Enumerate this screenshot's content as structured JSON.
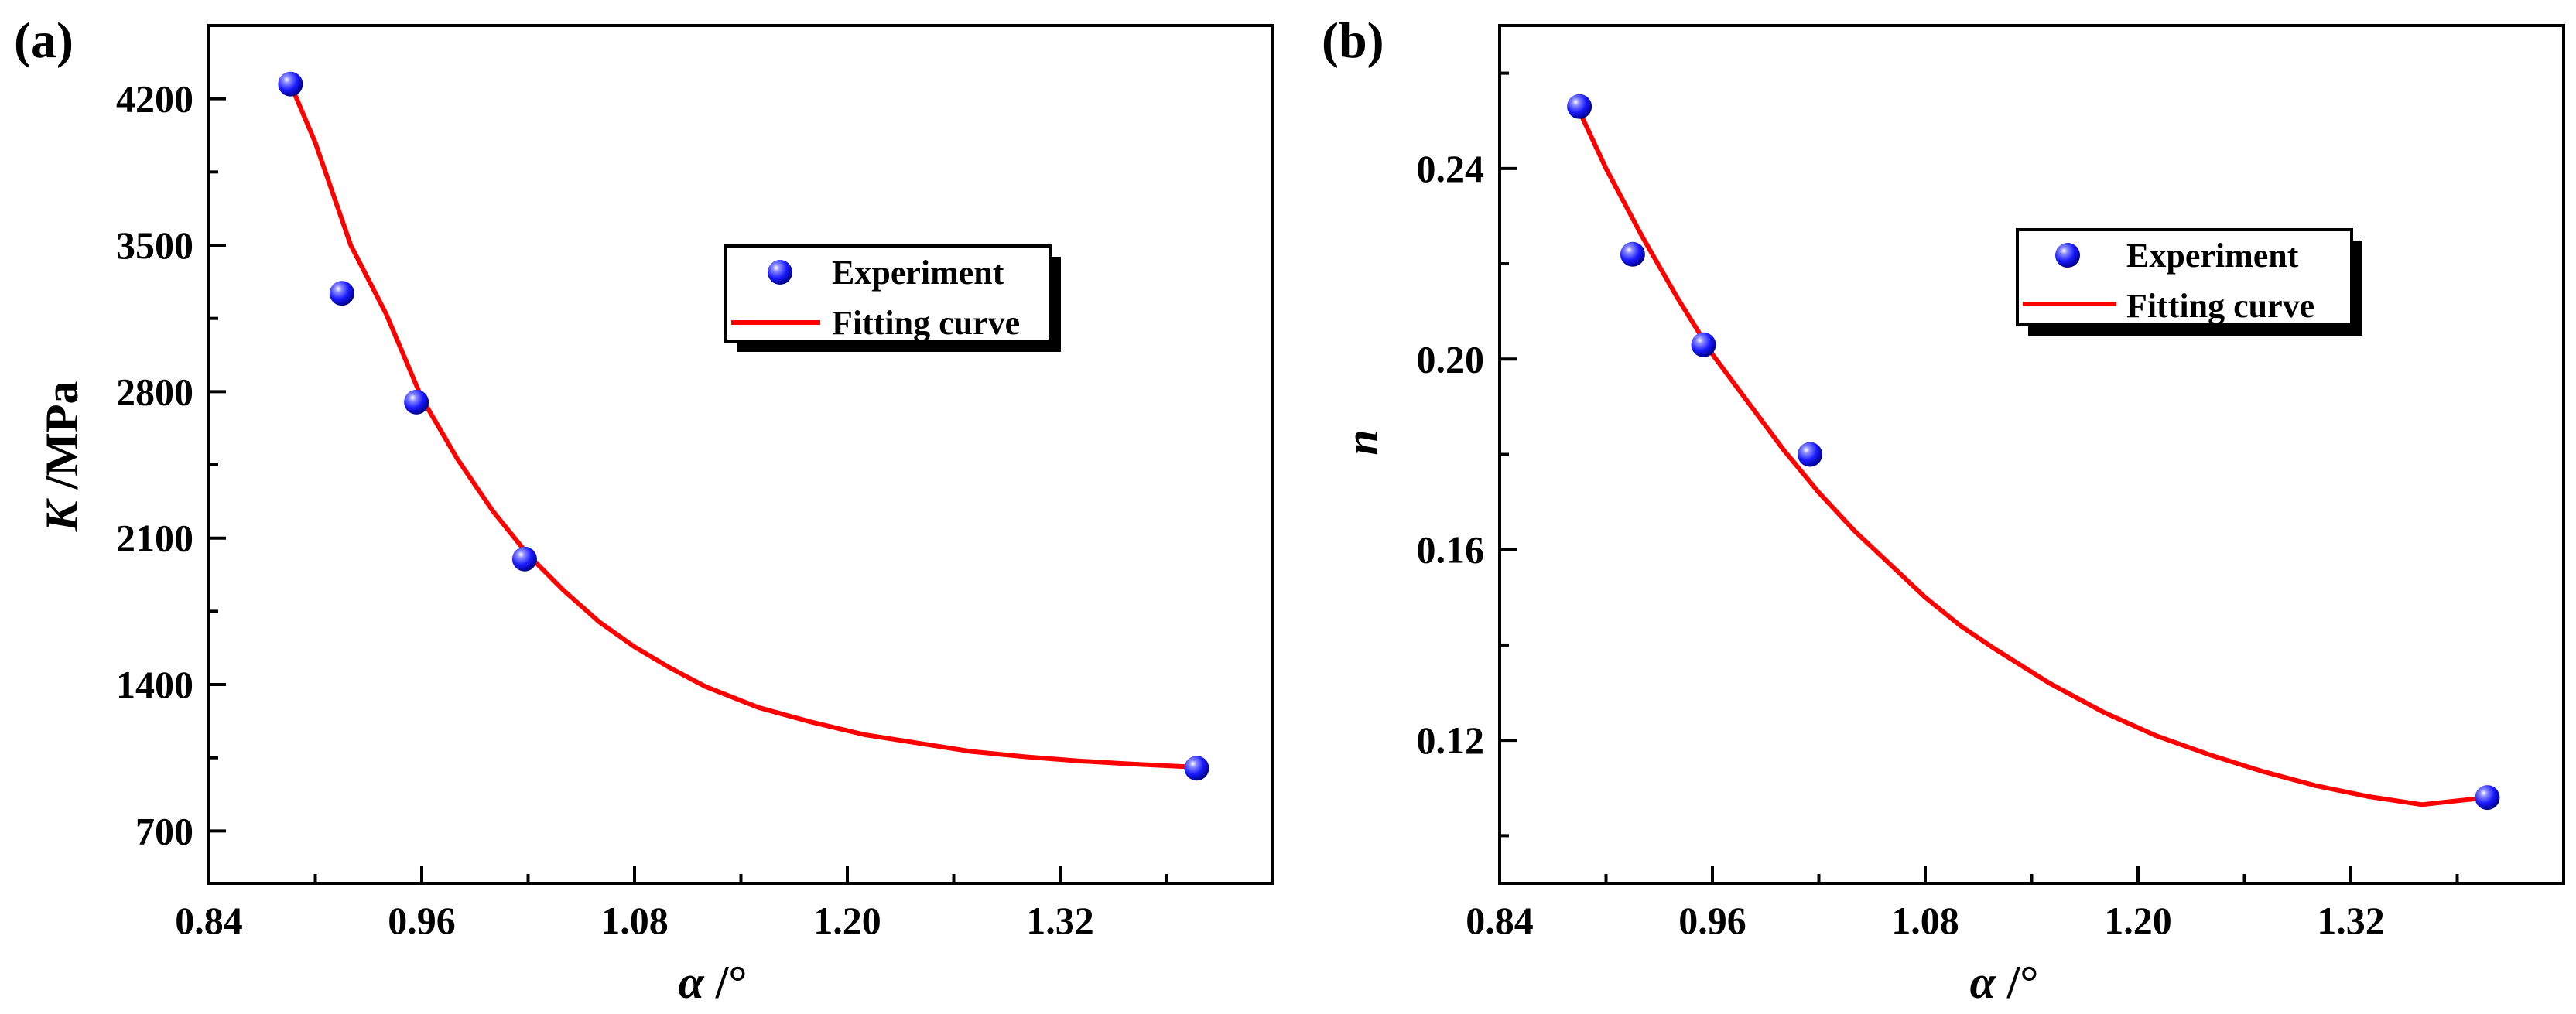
{
  "chart_data": [
    {
      "type": "scatter",
      "panel_label": "(a)",
      "title": "",
      "xlabel_symbol": "α",
      "xlabel_unit": " /°",
      "ylabel_symbol": "K",
      "ylabel_unit": " /MPa",
      "xlim": [
        0.84,
        1.44
      ],
      "ylim": [
        450,
        4550
      ],
      "xticks": [
        0.84,
        0.96,
        1.08,
        1.2,
        1.32
      ],
      "xtick_labels": [
        "0.84",
        "0.96",
        "1.08",
        "1.20",
        "1.32"
      ],
      "yticks": [
        700,
        1400,
        2100,
        2800,
        3500,
        4200
      ],
      "ytick_labels": [
        "700",
        "1400",
        "2100",
        "2800",
        "3500",
        "4200"
      ],
      "legend": {
        "position": "upper-right",
        "entries": [
          "Experiment",
          "Fitting curve"
        ]
      },
      "series": [
        {
          "name": "Experiment",
          "kind": "scatter",
          "x": [
            0.886,
            0.915,
            0.957,
            1.018,
            1.397
          ],
          "y": [
            4270,
            3270,
            2750,
            2000,
            1000
          ]
        },
        {
          "name": "Fitting curve",
          "kind": "line",
          "x": [
            0.886,
            0.9,
            0.92,
            0.94,
            0.96,
            0.98,
            1.0,
            1.02,
            1.04,
            1.06,
            1.08,
            1.1,
            1.12,
            1.15,
            1.18,
            1.21,
            1.24,
            1.27,
            1.3,
            1.33,
            1.36,
            1.397
          ],
          "y": [
            4270,
            3990,
            3500,
            3170,
            2770,
            2480,
            2230,
            2020,
            1850,
            1700,
            1580,
            1480,
            1390,
            1290,
            1220,
            1160,
            1120,
            1080,
            1055,
            1035,
            1020,
            1005
          ]
        }
      ]
    },
    {
      "type": "scatter",
      "panel_label": "(b)",
      "title": "",
      "xlabel_symbol": "α",
      "xlabel_unit": " /°",
      "ylabel_symbol": "n",
      "ylabel_unit": "",
      "xlim": [
        0.84,
        1.44
      ],
      "ylim": [
        0.09,
        0.27
      ],
      "xticks": [
        0.84,
        0.96,
        1.08,
        1.2,
        1.32
      ],
      "xtick_labels": [
        "0.84",
        "0.96",
        "1.08",
        "1.20",
        "1.32"
      ],
      "yticks": [
        0.12,
        0.16,
        0.2,
        0.24
      ],
      "ytick_labels": [
        "0.12",
        "0.16",
        "0.20",
        "0.24"
      ],
      "legend": {
        "position": "upper-right",
        "entries": [
          "Experiment",
          "Fitting curve"
        ]
      },
      "series": [
        {
          "name": "Experiment",
          "kind": "scatter",
          "x": [
            0.885,
            0.915,
            0.955,
            1.015,
            1.397
          ],
          "y": [
            0.253,
            0.222,
            0.203,
            0.18,
            0.108
          ]
        },
        {
          "name": "Fitting curve",
          "kind": "line",
          "x": [
            0.885,
            0.9,
            0.92,
            0.94,
            0.96,
            0.98,
            1.0,
            1.02,
            1.04,
            1.06,
            1.08,
            1.1,
            1.12,
            1.15,
            1.18,
            1.21,
            1.24,
            1.27,
            1.3,
            1.33,
            1.36,
            1.397
          ],
          "y": [
            0.252,
            0.24,
            0.226,
            0.213,
            0.201,
            0.191,
            0.181,
            0.172,
            0.164,
            0.157,
            0.15,
            0.144,
            0.139,
            0.132,
            0.126,
            0.121,
            0.117,
            0.1135,
            0.1105,
            0.1082,
            0.1065,
            0.108
          ]
        }
      ]
    }
  ],
  "colors": {
    "marker": "#1a1aff",
    "curve": "#ff0000",
    "axis": "#000000"
  }
}
